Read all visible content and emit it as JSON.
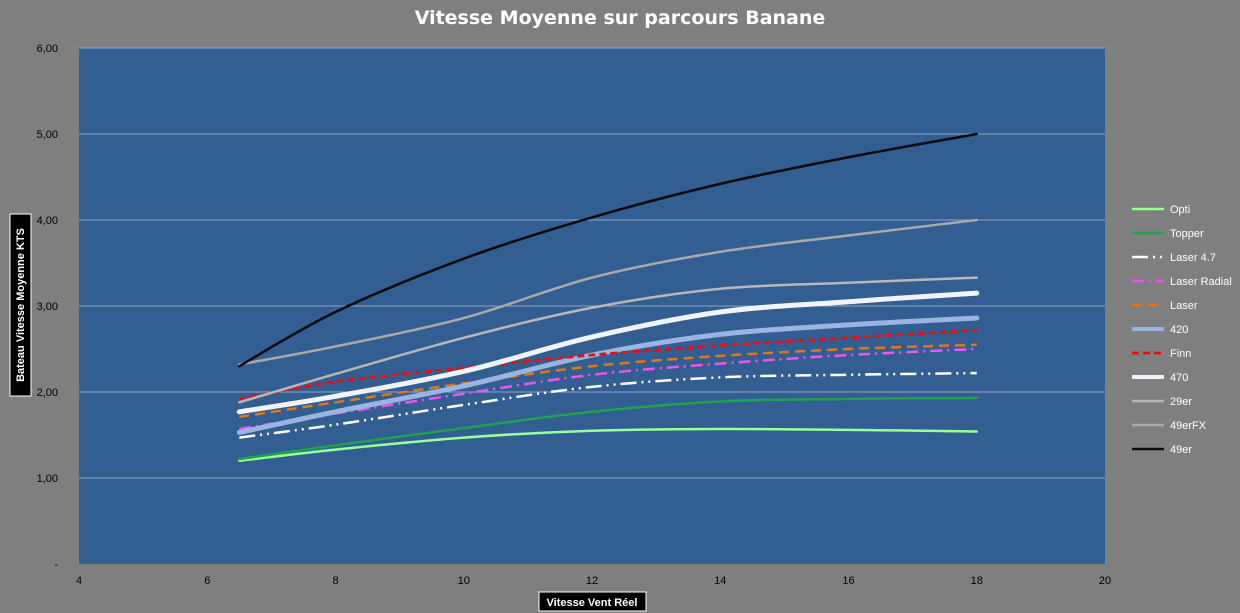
{
  "chart_data": {
    "type": "line",
    "title": "Vitesse Moyenne sur parcours Banane",
    "xlabel": "Vitesse Vent Réel",
    "ylabel": "Bateau Vitesse Moyenne KTS",
    "xlim": [
      4,
      20
    ],
    "ylim": [
      0,
      6
    ],
    "x_ticks": [
      "4",
      "6",
      "8",
      "10",
      "12",
      "14",
      "16",
      "18",
      "20"
    ],
    "y_ticks": [
      "-",
      "1,00",
      "2,00",
      "3,00",
      "4,00",
      "5,00",
      "6,00"
    ],
    "grid": true,
    "legend_position": "right",
    "colors": {
      "background": "#7f7f7f",
      "plot_area": "#335e91",
      "gridline": "#8ea4c1"
    },
    "x": [
      6.5,
      8,
      10,
      12,
      14,
      16,
      18
    ],
    "series": [
      {
        "name": "Opti",
        "color": "#99ff99",
        "width": 2.5,
        "dash": "",
        "values": [
          1.2,
          1.33,
          1.47,
          1.55,
          1.57,
          1.56,
          1.54
        ]
      },
      {
        "name": "Topper",
        "color": "#1fa14e",
        "width": 2.5,
        "dash": "",
        "values": [
          1.22,
          1.38,
          1.58,
          1.77,
          1.89,
          1.92,
          1.93
        ]
      },
      {
        "name": "Laser 4.7",
        "color": "#ffffff",
        "width": 2.5,
        "dash": "16 5 2 5 2 5",
        "values": [
          1.47,
          1.62,
          1.85,
          2.06,
          2.17,
          2.2,
          2.22
        ]
      },
      {
        "name": "Laser Radial",
        "color": "#ee55ee",
        "width": 2.5,
        "dash": "12 5 2 5",
        "values": [
          1.57,
          1.75,
          1.98,
          2.2,
          2.33,
          2.43,
          2.5
        ]
      },
      {
        "name": "Laser",
        "color": "#e0761b",
        "width": 2.5,
        "dash": "10 6",
        "values": [
          1.71,
          1.88,
          2.1,
          2.3,
          2.42,
          2.5,
          2.55
        ]
      },
      {
        "name": "420",
        "color": "#9ab5e2",
        "width": 5,
        "dash": "",
        "values": [
          1.53,
          1.77,
          2.07,
          2.43,
          2.67,
          2.78,
          2.86
        ]
      },
      {
        "name": "Finn",
        "color": "#e51010",
        "width": 2.8,
        "dash": "7 4",
        "values": [
          1.92,
          2.12,
          2.28,
          2.43,
          2.54,
          2.63,
          2.72
        ]
      },
      {
        "name": "470",
        "color": "#f2f4fb",
        "width": 5,
        "dash": "",
        "values": [
          1.77,
          1.95,
          2.24,
          2.64,
          2.93,
          3.05,
          3.15
        ]
      },
      {
        "name": "29er",
        "color": "#b8b8b8",
        "width": 2.5,
        "dash": "",
        "values": [
          1.88,
          2.21,
          2.63,
          2.98,
          3.2,
          3.27,
          3.33
        ]
      },
      {
        "name": "49erFX",
        "color": "#a9a9a9",
        "width": 2.5,
        "dash": "",
        "values": [
          2.32,
          2.53,
          2.86,
          3.33,
          3.63,
          3.82,
          4.0
        ]
      },
      {
        "name": "49er",
        "color": "#0a0a0a",
        "width": 2.5,
        "dash": "",
        "values": [
          2.3,
          2.93,
          3.55,
          4.03,
          4.42,
          4.73,
          5.0
        ]
      }
    ]
  }
}
